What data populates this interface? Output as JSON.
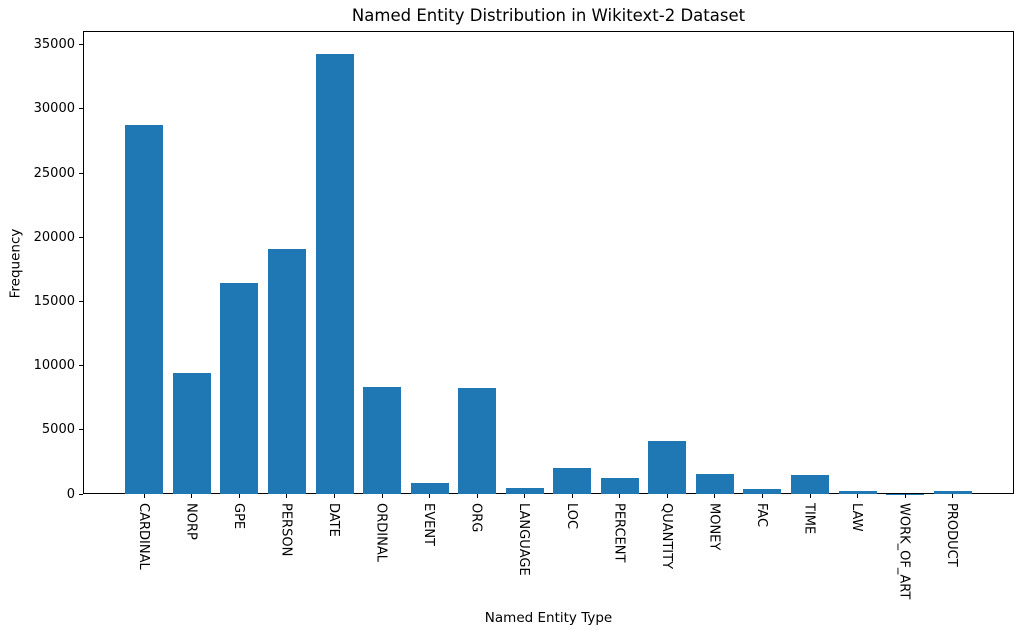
{
  "chart_data": {
    "type": "bar",
    "title": "Named Entity Distribution in Wikitext-2 Dataset",
    "xlabel": "Named Entity Type",
    "ylabel": "Frequency",
    "categories": [
      "CARDINAL",
      "NORP",
      "GPE",
      "PERSON",
      "DATE",
      "ORDINAL",
      "EVENT",
      "ORG",
      "LANGUAGE",
      "LOC",
      "PERCENT",
      "QUANTITY",
      "MONEY",
      "FAC",
      "TIME",
      "LAW",
      "WORK_OF_ART",
      "PRODUCT"
    ],
    "values": [
      28750,
      9450,
      16450,
      19100,
      34300,
      8300,
      820,
      8280,
      470,
      2050,
      1250,
      4150,
      1520,
      380,
      1450,
      200,
      30,
      260
    ],
    "yticks": [
      0,
      5000,
      10000,
      15000,
      20000,
      25000,
      30000,
      35000
    ],
    "ylim": [
      0,
      36060
    ],
    "bar_color": "#1f77b4",
    "grid": false,
    "legend": null
  }
}
